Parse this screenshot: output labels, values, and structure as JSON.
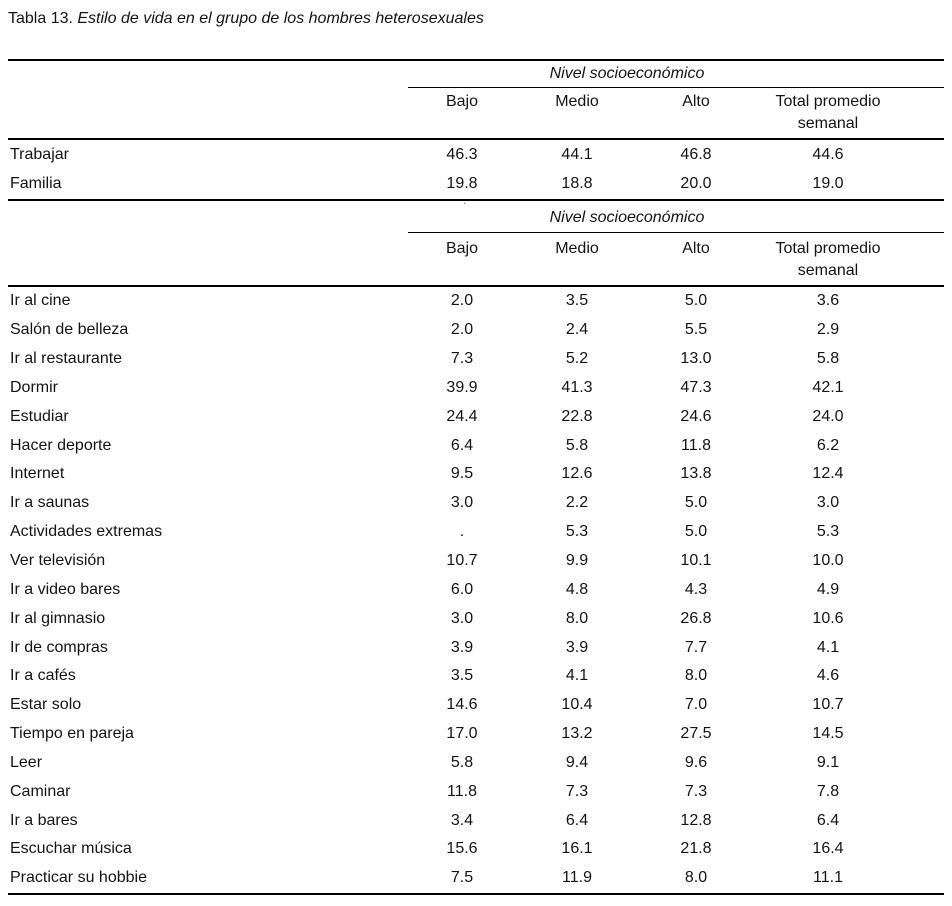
{
  "caption": {
    "prefix": "Tabla 13.",
    "title": " Estilo de vida en el grupo de los hombres heterosexuales"
  },
  "table": {
    "group_header": "Nivel socioeconómico",
    "columns": [
      "Bajo",
      "Medio",
      "Alto"
    ],
    "total_header": {
      "line1": "Total promedio",
      "line2": "semanal"
    },
    "stray_mark": ".",
    "sections": [
      {
        "rows": [
          {
            "label": "Trabajar",
            "values": [
              "46.3",
              "44.1",
              "46.8",
              "44.6"
            ]
          },
          {
            "label": "Familia",
            "values": [
              "19.8",
              "18.8",
              "20.0",
              "19.0"
            ]
          }
        ]
      },
      {
        "rows": [
          {
            "label": "Ir al cine",
            "values": [
              "2.0",
              "3.5",
              "5.0",
              "3.6"
            ]
          },
          {
            "label": "Salón de belleza",
            "values": [
              "2.0",
              "2.4",
              "5.5",
              "2.9"
            ]
          },
          {
            "label": "Ir al restaurante",
            "values": [
              "7.3",
              "5.2",
              "13.0",
              "5.8"
            ]
          },
          {
            "label": "Dormir",
            "values": [
              "39.9",
              "41.3",
              "47.3",
              "42.1"
            ]
          },
          {
            "label": "Estudiar",
            "values": [
              "24.4",
              "22.8",
              "24.6",
              "24.0"
            ]
          },
          {
            "label": "Hacer deporte",
            "values": [
              "6.4",
              "5.8",
              "11.8",
              "6.2"
            ]
          },
          {
            "label": "Internet",
            "values": [
              "9.5",
              "12.6",
              "13.8",
              "12.4"
            ]
          },
          {
            "label": "Ir a saunas",
            "values": [
              "3.0",
              "2.2",
              "5.0",
              "3.0"
            ]
          },
          {
            "label": "Actividades extremas",
            "values": [
              ".",
              "5.3",
              "5.0",
              "5.3"
            ]
          },
          {
            "label": "Ver televisión",
            "values": [
              "10.7",
              "9.9",
              "10.1",
              "10.0"
            ]
          },
          {
            "label": "Ir a video bares",
            "values": [
              "6.0",
              "4.8",
              "4.3",
              "4.9"
            ]
          },
          {
            "label": "Ir al gimnasio",
            "values": [
              "3.0",
              "8.0",
              "26.8",
              "10.6"
            ]
          },
          {
            "label": "Ir de compras",
            "values": [
              "3.9",
              "3.9",
              "7.7",
              "4.1"
            ]
          },
          {
            "label": "Ir a cafés",
            "values": [
              "3.5",
              "4.1",
              "8.0",
              "4.6"
            ]
          },
          {
            "label": "Estar solo",
            "values": [
              "14.6",
              "10.4",
              "7.0",
              "10.7"
            ]
          },
          {
            "label": "Tiempo en pareja",
            "values": [
              "17.0",
              "13.2",
              "27.5",
              "14.5"
            ]
          },
          {
            "label": "Leer",
            "values": [
              "5.8",
              "9.4",
              "9.6",
              "9.1"
            ]
          },
          {
            "label": "Caminar",
            "values": [
              "11.8",
              "7.3",
              "7.3",
              "7.8"
            ]
          },
          {
            "label": "Ir a bares",
            "values": [
              "3.4",
              "6.4",
              "12.8",
              "6.4"
            ]
          },
          {
            "label": "Escuchar música",
            "values": [
              "15.6",
              "16.1",
              "21.8",
              "16.4"
            ]
          },
          {
            "label": "Practicar su hobbie",
            "values": [
              "7.5",
              "11.9",
              "8.0",
              "11.1"
            ]
          }
        ]
      }
    ]
  },
  "colors": {
    "background": "#ffffff",
    "text": "#141414",
    "rule": "#000000"
  }
}
